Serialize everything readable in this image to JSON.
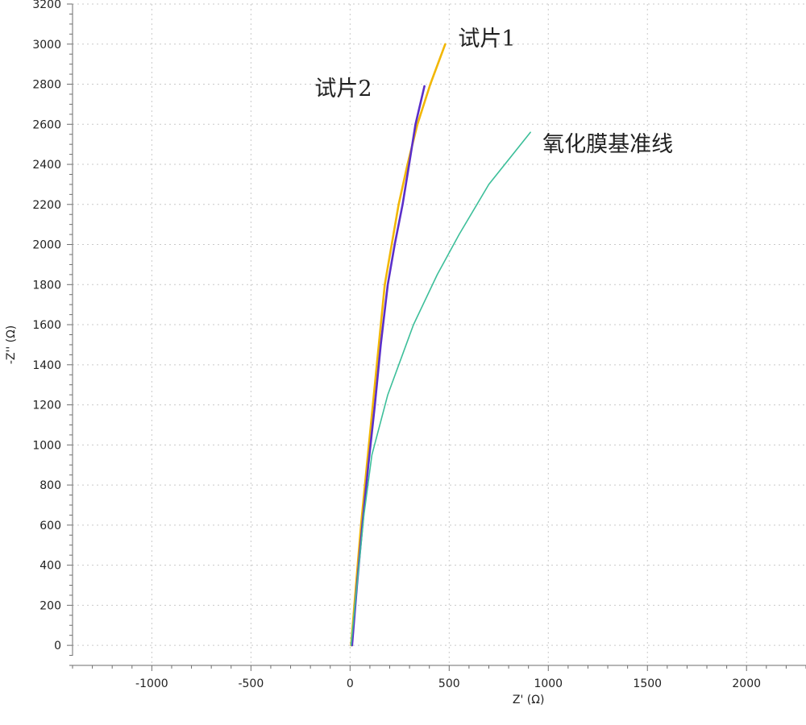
{
  "chart_data": {
    "type": "line",
    "title": "",
    "xlabel": "Z' (Ω)",
    "ylabel": "-Z'' (Ω)",
    "xlim": [
      -1400,
      2300
    ],
    "ylim": [
      -100,
      3200
    ],
    "x_ticks": [
      -1000,
      -500,
      0,
      500,
      1000,
      1500,
      2000
    ],
    "y_ticks": [
      0,
      200,
      400,
      600,
      800,
      1000,
      1200,
      1400,
      1600,
      1800,
      2000,
      2200,
      2400,
      2600,
      2800,
      3000,
      3200
    ],
    "grid": true,
    "series": [
      {
        "name": "试片1",
        "color": "#f2b705",
        "points": [
          [
            5,
            0
          ],
          [
            30,
            300
          ],
          [
            55,
            600
          ],
          [
            85,
            900
          ],
          [
            115,
            1200
          ],
          [
            145,
            1500
          ],
          [
            175,
            1800
          ],
          [
            210,
            2000
          ],
          [
            245,
            2200
          ],
          [
            290,
            2400
          ],
          [
            340,
            2600
          ],
          [
            405,
            2800
          ],
          [
            480,
            3000
          ]
        ]
      },
      {
        "name": "试片2",
        "color": "#5b2fc9",
        "points": [
          [
            10,
            0
          ],
          [
            35,
            300
          ],
          [
            62,
            600
          ],
          [
            92,
            900
          ],
          [
            125,
            1200
          ],
          [
            155,
            1500
          ],
          [
            190,
            1800
          ],
          [
            225,
            2000
          ],
          [
            265,
            2200
          ],
          [
            298,
            2400
          ],
          [
            330,
            2600
          ],
          [
            375,
            2790
          ]
        ]
      },
      {
        "name": "氧化膜基准线",
        "color": "#3dbf9a",
        "points": [
          [
            5,
            0
          ],
          [
            25,
            200
          ],
          [
            45,
            400
          ],
          [
            70,
            650
          ],
          [
            110,
            950
          ],
          [
            190,
            1250
          ],
          [
            320,
            1600
          ],
          [
            440,
            1850
          ],
          [
            550,
            2050
          ],
          [
            700,
            2300
          ],
          [
            910,
            2560
          ]
        ]
      }
    ]
  }
}
